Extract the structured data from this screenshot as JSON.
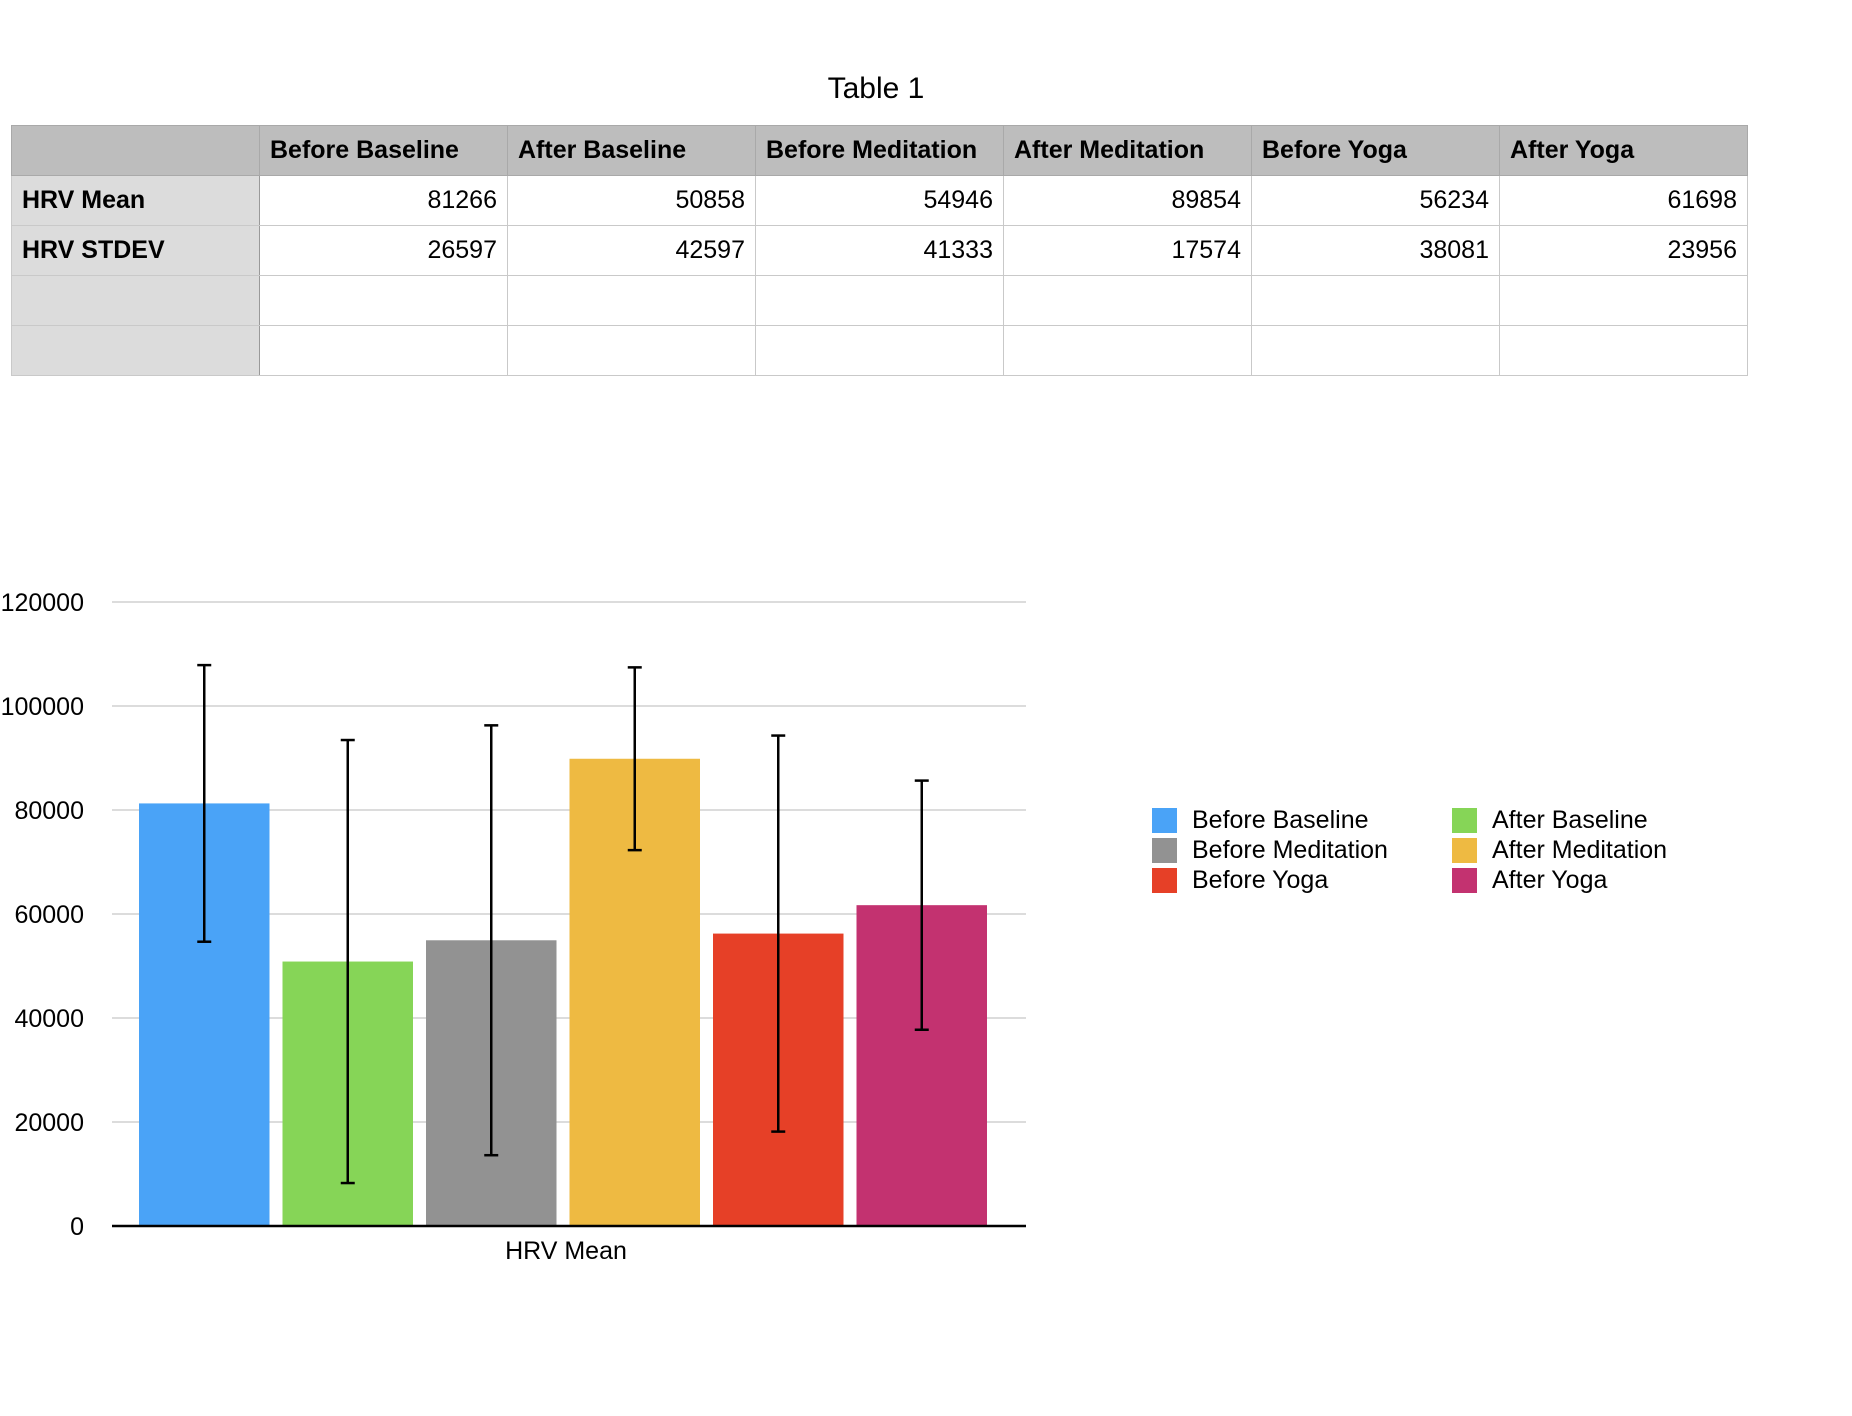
{
  "table": {
    "title": "Table 1",
    "columns": [
      "",
      "Before Baseline",
      "After Baseline",
      "Before Meditation",
      "After Meditation",
      "Before Yoga",
      "After Yoga"
    ],
    "rows": [
      {
        "label": "HRV Mean",
        "values": [
          "81266",
          "50858",
          "54946",
          "89854",
          "56234",
          "61698"
        ]
      },
      {
        "label": "HRV STDEV",
        "values": [
          "26597",
          "42597",
          "41333",
          "17574",
          "38081",
          "23956"
        ]
      },
      {
        "label": "",
        "values": [
          "",
          "",
          "",
          "",
          "",
          ""
        ]
      },
      {
        "label": "",
        "values": [
          "",
          "",
          "",
          "",
          "",
          ""
        ]
      }
    ]
  },
  "chart_data": {
    "type": "bar",
    "categories": [
      "HRV Mean"
    ],
    "xlabel": "HRV Mean",
    "ylabel": "",
    "ylim": [
      0,
      120000
    ],
    "yticks": [
      0,
      20000,
      40000,
      60000,
      80000,
      100000,
      120000
    ],
    "ytick_labels": [
      "0",
      "20000",
      "40000",
      "60000",
      "80000",
      "100000",
      "120000"
    ],
    "grid": true,
    "legend_position": "right",
    "error_bars": true,
    "series": [
      {
        "name": "Before Baseline",
        "color": "#4aa3f7",
        "values": [
          81266
        ],
        "error": [
          26597
        ]
      },
      {
        "name": "After Baseline",
        "color": "#86d557",
        "values": [
          50858
        ],
        "error": [
          42597
        ]
      },
      {
        "name": "Before Meditation",
        "color": "#929292",
        "values": [
          54946
        ],
        "error": [
          41333
        ]
      },
      {
        "name": "After Meditation",
        "color": "#eeba42",
        "values": [
          89854
        ],
        "error": [
          17574
        ]
      },
      {
        "name": "Before Yoga",
        "color": "#e64027",
        "values": [
          56234
        ],
        "error": [
          38081
        ]
      },
      {
        "name": "After Yoga",
        "color": "#c33270",
        "values": [
          61698
        ],
        "error": [
          23956
        ]
      }
    ]
  }
}
